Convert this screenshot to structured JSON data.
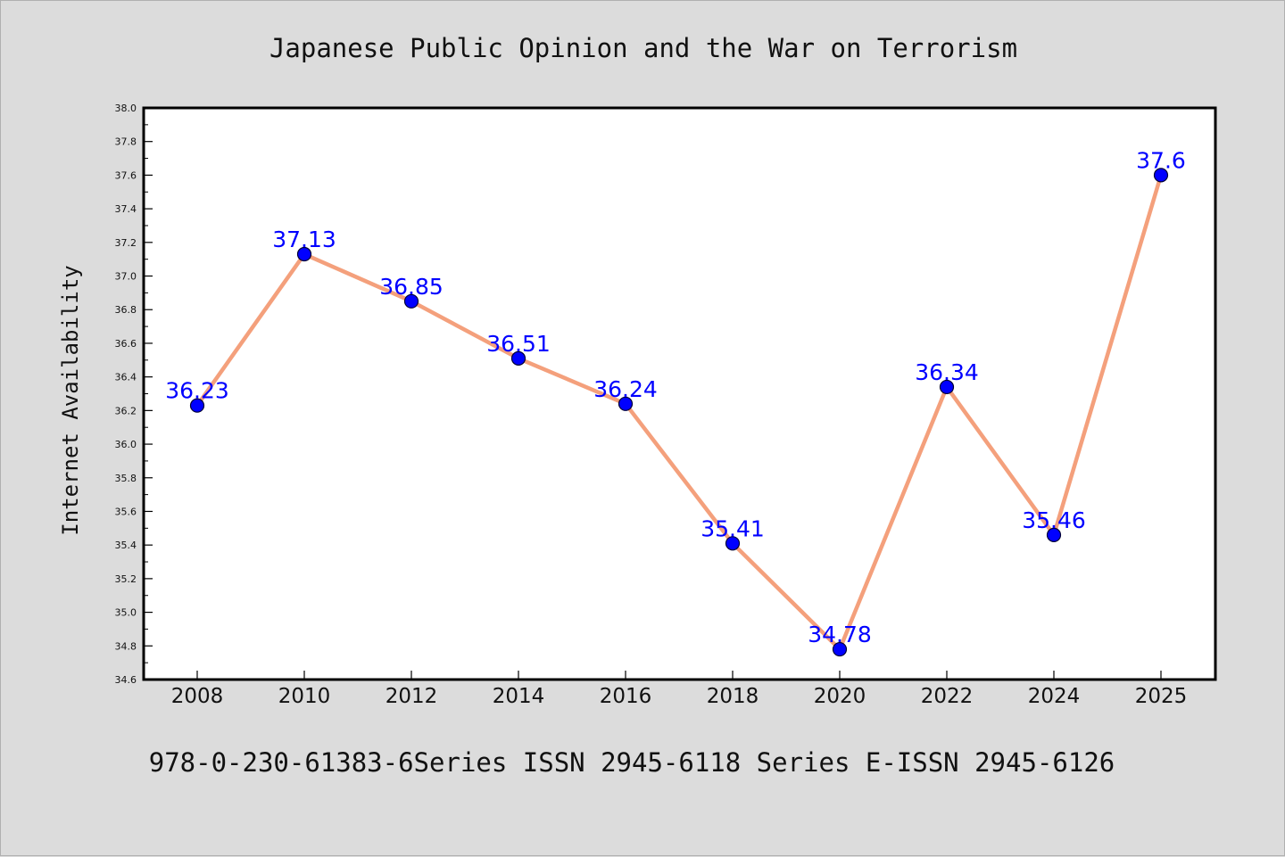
{
  "chart_data": {
    "type": "line",
    "title": "Japanese Public Opinion and the War on Terrorism",
    "xlabel": "",
    "ylabel": "Internet Availability",
    "footer": "978-0-230-61383-6Series ISSN 2945-6118 Series E-ISSN 2945-6126",
    "categories": [
      "2008",
      "2010",
      "2012",
      "2014",
      "2016",
      "2018",
      "2020",
      "2022",
      "2024",
      "2025"
    ],
    "values": [
      36.23,
      37.13,
      36.85,
      36.51,
      36.24,
      35.41,
      34.78,
      36.34,
      35.46,
      37.6
    ],
    "data_labels": [
      "36.23",
      "37.13",
      "36.85",
      "36.51",
      "36.24",
      "35.41",
      "34.78",
      "36.34",
      "35.46",
      "37.6"
    ],
    "ylim": [
      34.6,
      38.0
    ],
    "yticks": [
      "34.6",
      "34.8",
      "35.0",
      "35.2",
      "35.4",
      "35.6",
      "35.8",
      "36.0",
      "36.2",
      "36.4",
      "36.6",
      "36.8",
      "37.0",
      "37.2",
      "37.4",
      "37.6",
      "37.8",
      "38.0"
    ],
    "grid": false,
    "legend": "none",
    "colors": {
      "background": "#dcdcdc",
      "plot_background": "#ffffff",
      "line": "#f4a07c",
      "marker": "#0000ff",
      "marker_edge": "#000033",
      "data_label": "#0000ff"
    }
  }
}
